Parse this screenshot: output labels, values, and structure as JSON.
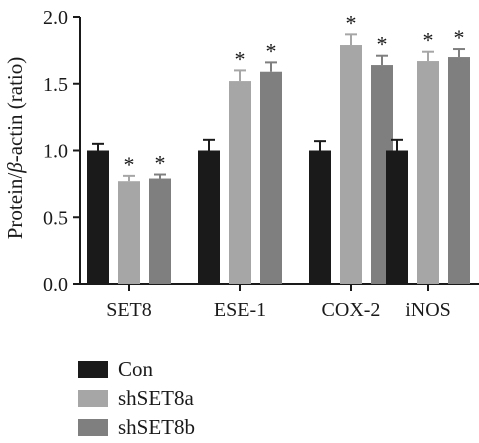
{
  "chart_data": {
    "type": "bar",
    "categories": [
      "SET8",
      "ESE-1",
      "COX-2",
      "iNOS"
    ],
    "series": [
      {
        "name": "Con",
        "color": "#1a1a1a",
        "values": [
          1.0,
          1.0,
          1.0,
          1.0
        ],
        "errors": [
          0.05,
          0.08,
          0.07,
          0.08
        ],
        "significant": [
          false,
          false,
          false,
          false
        ]
      },
      {
        "name": "shSET8a",
        "color": "#a6a6a6",
        "values": [
          0.77,
          1.52,
          1.79,
          1.67
        ],
        "errors": [
          0.04,
          0.08,
          0.08,
          0.07
        ],
        "significant": [
          true,
          true,
          true,
          true
        ]
      },
      {
        "name": "shSET8b",
        "color": "#7f7f7f",
        "values": [
          0.79,
          1.59,
          1.64,
          1.7
        ],
        "errors": [
          0.03,
          0.07,
          0.07,
          0.06
        ],
        "significant": [
          true,
          true,
          true,
          true
        ]
      }
    ],
    "ylabel_parts": [
      "Protein/",
      "β",
      "-actin (ratio)"
    ],
    "yticks": [
      "0.0",
      "0.5",
      "1.0",
      "1.5",
      "2.0"
    ],
    "ylim": [
      0,
      2.0
    ],
    "significance_marker": "*",
    "legend_position": "bottom-left",
    "grid": false
  }
}
